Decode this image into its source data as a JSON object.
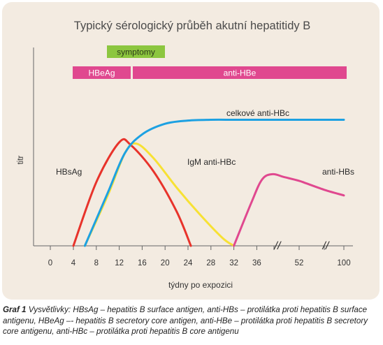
{
  "chart_data": {
    "type": "line",
    "title": "Typický sérologický průběh akutní hepatitidy B",
    "xlabel": "týdny po expozici",
    "ylabel": "titr",
    "x_ticks": [
      "0",
      "4",
      "8",
      "12",
      "16",
      "20",
      "24",
      "28",
      "32",
      "36",
      "52",
      "100"
    ],
    "axis_breaks": [
      "//",
      "//"
    ],
    "phase_bars": [
      {
        "label": "symptomy",
        "start": 6,
        "end": 18.5,
        "color": "#8cc63f"
      },
      {
        "label": "HBeAg",
        "start": 4,
        "end": 14,
        "color": "#e0488f"
      },
      {
        "label": "anti-HBe",
        "start": 14.5,
        "end": 100,
        "color": "#e0488f"
      }
    ],
    "series": [
      {
        "name": "HBsAg",
        "color": "#e8332b",
        "x": [
          4,
          8,
          12,
          14,
          18,
          22,
          24.5
        ],
        "y": [
          0,
          2.4,
          3.9,
          3.8,
          2.8,
          1.3,
          0
        ]
      },
      {
        "name": "celkové anti-HBc",
        "color": "#1da1e2",
        "x": [
          6,
          10,
          13,
          16,
          20,
          24,
          28,
          32,
          36,
          52,
          100
        ],
        "y": [
          0,
          2.0,
          3.5,
          4.2,
          4.6,
          4.72,
          4.75,
          4.75,
          4.75,
          4.75,
          4.75
        ]
      },
      {
        "name": "IgM anti-HBc",
        "color": "#f7e134",
        "x": [
          6,
          10,
          13,
          15,
          18,
          22,
          26,
          30,
          32
        ],
        "y": [
          0,
          1.9,
          3.5,
          3.85,
          3.3,
          2.2,
          1.2,
          0.3,
          0
        ]
      },
      {
        "name": "anti-HBs",
        "color": "#e0488f",
        "x": [
          32,
          35,
          38,
          42,
          46,
          52,
          60,
          80,
          100
        ],
        "y": [
          0,
          1.6,
          2.5,
          2.7,
          2.6,
          2.45,
          2.35,
          2.1,
          1.9
        ]
      }
    ]
  },
  "caption": {
    "lead": "Graf 1",
    "text": "Vysvětlivky: HBsAg – hepatitis B surface antigen, anti-HBs – protilátka proti hepatitis B surface antigenu, HBeAg –- hepatitis B secretory core antigen, anti-HBe – protilátka proti hepatitis B secretory core antigenu, anti-HBc – protilátka proti hepatitis B core antigenu"
  }
}
